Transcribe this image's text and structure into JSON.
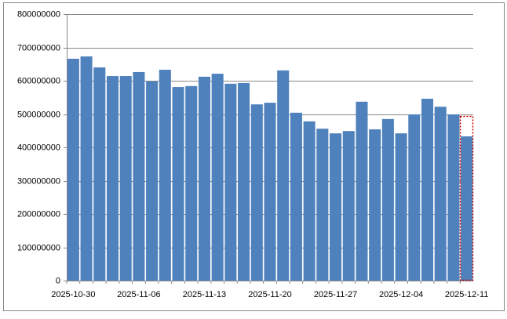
{
  "chart_data": {
    "type": "bar",
    "color": "#4f81bd",
    "grid": true,
    "categories": [
      "2025-10-30",
      null,
      null,
      null,
      null,
      "2025-11-06",
      null,
      null,
      null,
      null,
      "2025-11-13",
      null,
      null,
      null,
      null,
      "2025-11-20",
      null,
      null,
      null,
      null,
      "2025-11-27",
      null,
      null,
      null,
      null,
      "2025-12-04",
      null,
      null,
      null,
      null,
      "2025-12-11"
    ],
    "values": [
      666000000,
      673000000,
      640000000,
      614000000,
      614000000,
      626000000,
      598000000,
      633000000,
      581000000,
      584000000,
      612000000,
      621000000,
      591000000,
      593000000,
      529000000,
      534000000,
      631000000,
      504000000,
      478000000,
      456000000,
      442000000,
      449000000,
      537000000,
      454000000,
      485000000,
      442000000,
      499000000,
      546000000,
      522000000,
      499000000,
      433000000
    ],
    "ylim": [
      0,
      800000000
    ],
    "yticks": [
      0,
      100000000,
      200000000,
      300000000,
      400000000,
      500000000,
      600000000,
      700000000,
      800000000
    ]
  }
}
